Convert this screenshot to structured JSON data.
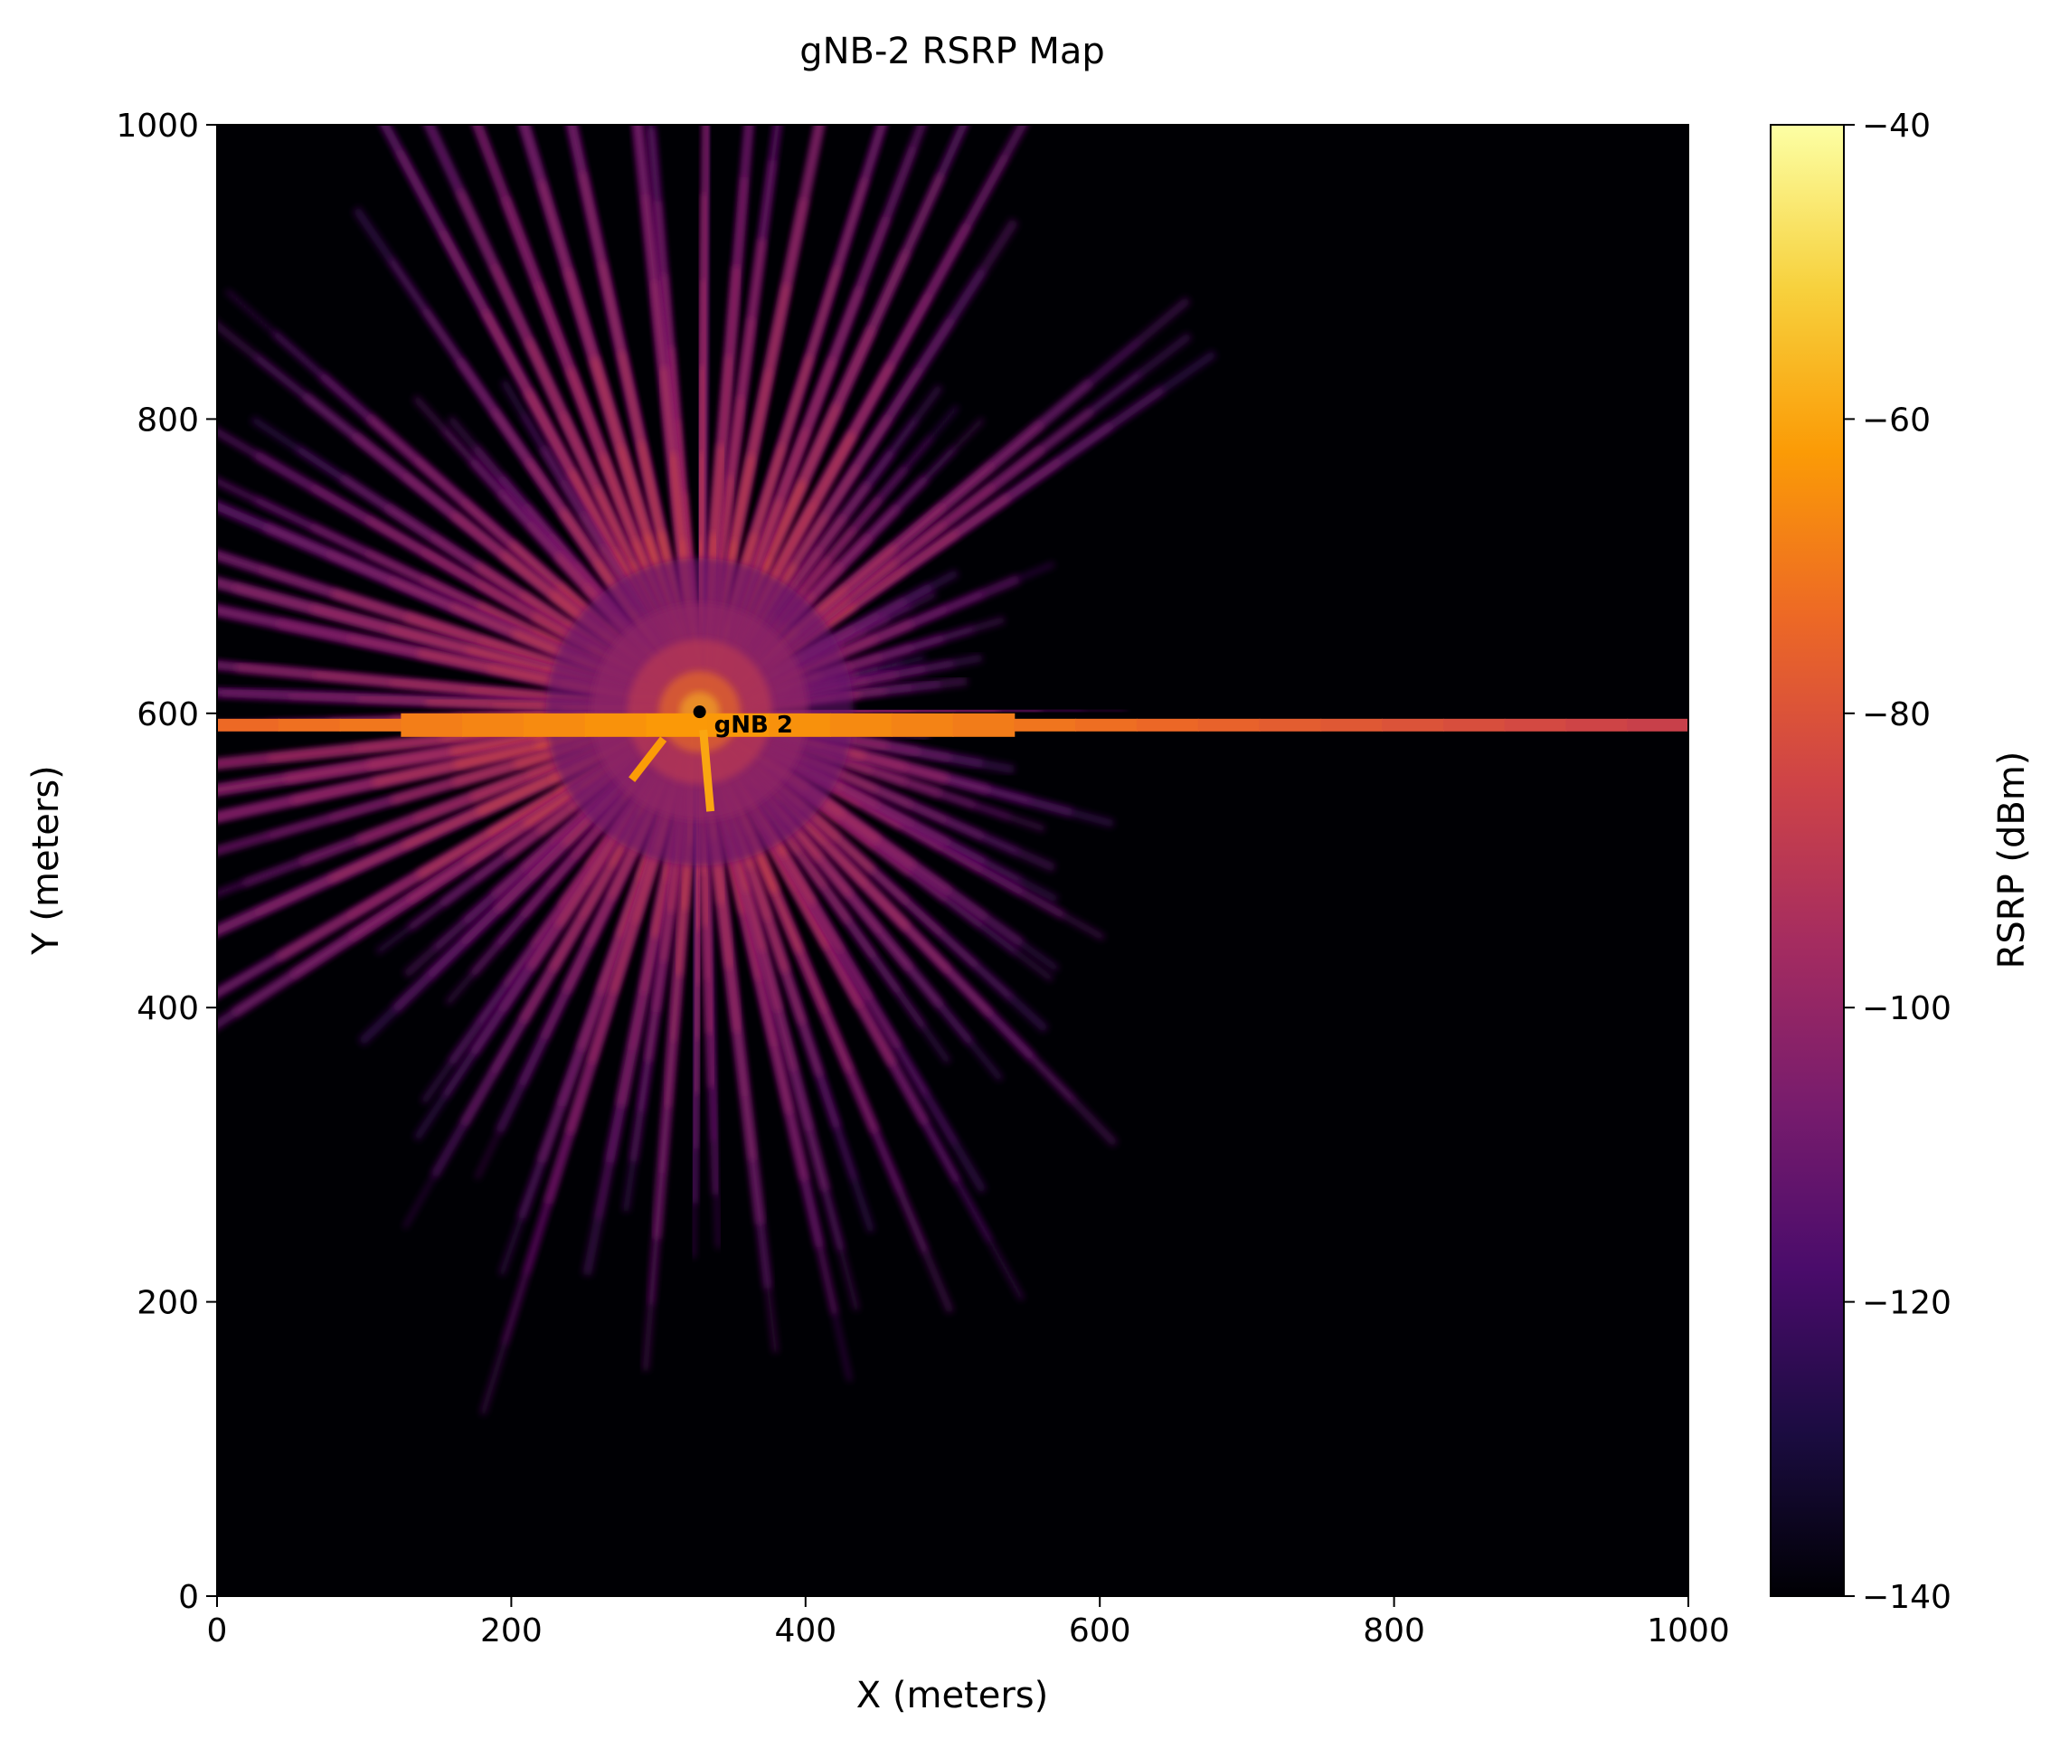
{
  "chart_data": {
    "type": "heatmap",
    "title": "gNB-2 RSRP Map",
    "xlabel": "X (meters)",
    "ylabel": "Y (meters)",
    "xlim": [
      0,
      1000
    ],
    "ylim": [
      0,
      1000
    ],
    "xticks": [
      0,
      200,
      400,
      600,
      800,
      1000
    ],
    "yticks": [
      0,
      200,
      400,
      600,
      800,
      1000
    ],
    "colormap": "inferno",
    "grid": false,
    "colorbar": {
      "label": "RSRP (dBm)",
      "range": [
        -140,
        -40
      ],
      "ticks": [
        -140,
        -120,
        -100,
        -80,
        -60,
        -40
      ],
      "tick_labels": [
        "−140",
        "−120",
        "−100",
        "−80",
        "−60",
        "−40"
      ]
    },
    "gnb": {
      "label": "gNB 2",
      "x": 328,
      "y": 601
    },
    "field": {
      "peak_dbm": -55,
      "ray_count": 90,
      "corridor": {
        "y": 592,
        "x_from": 0,
        "x_to": 1000,
        "dbm_near": -62,
        "dbm_far": -88
      },
      "weak_floor_dbm": -140
    },
    "colors": {
      "inferno": [
        "#000004",
        "#1b0c41",
        "#4a0c6b",
        "#781c6d",
        "#a52c60",
        "#cf4446",
        "#ed6925",
        "#fb9b06",
        "#f7d13d",
        "#fcffa4"
      ]
    }
  }
}
